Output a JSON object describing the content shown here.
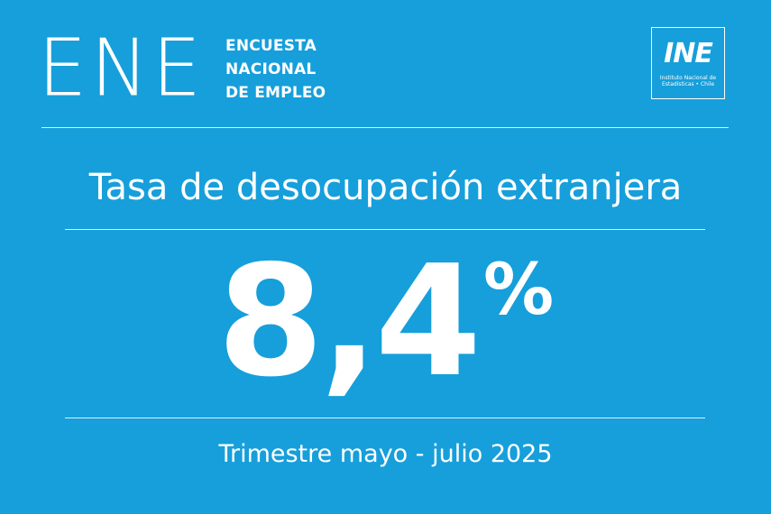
{
  "header": {
    "brand_mark": "ENE",
    "subtitle_lines": [
      "ENCUESTA",
      "NACIONAL",
      "DE EMPLEO"
    ],
    "logo": {
      "letters": "INE",
      "caption_lines": [
        "Instituto Nacional de",
        "Estadísticas • Chile"
      ]
    }
  },
  "main": {
    "headline": "Tasa de desocupación extranjera",
    "value": "8,4",
    "unit": "%",
    "period": "Trimestre mayo - julio 2025"
  },
  "colors": {
    "background": "#169fdb",
    "foreground": "#ffffff"
  }
}
